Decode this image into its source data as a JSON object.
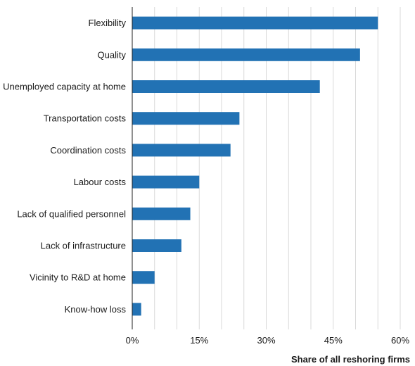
{
  "chart_data": {
    "type": "bar",
    "orientation": "horizontal",
    "categories": [
      "Flexibility",
      "Quality",
      "Unemployed capacity at home",
      "Transportation costs",
      "Coordination costs",
      "Labour costs",
      "Lack of qualified personnel",
      "Lack of infrastructure",
      "Vicinity to R&D at home",
      "Know-how loss"
    ],
    "values": [
      55,
      51,
      42,
      24,
      22,
      15,
      13,
      11,
      5,
      2
    ],
    "xlabel": "Share of all reshoring firms",
    "ylabel": "",
    "xlim": [
      0,
      60
    ],
    "x_ticks": [
      0,
      15,
      30,
      45,
      60
    ],
    "x_tick_labels": [
      "0%",
      "15%",
      "30%",
      "45%",
      "60%"
    ],
    "grid": true,
    "bar_color": "#2272b4",
    "grid_color": "#d9d9d9"
  }
}
